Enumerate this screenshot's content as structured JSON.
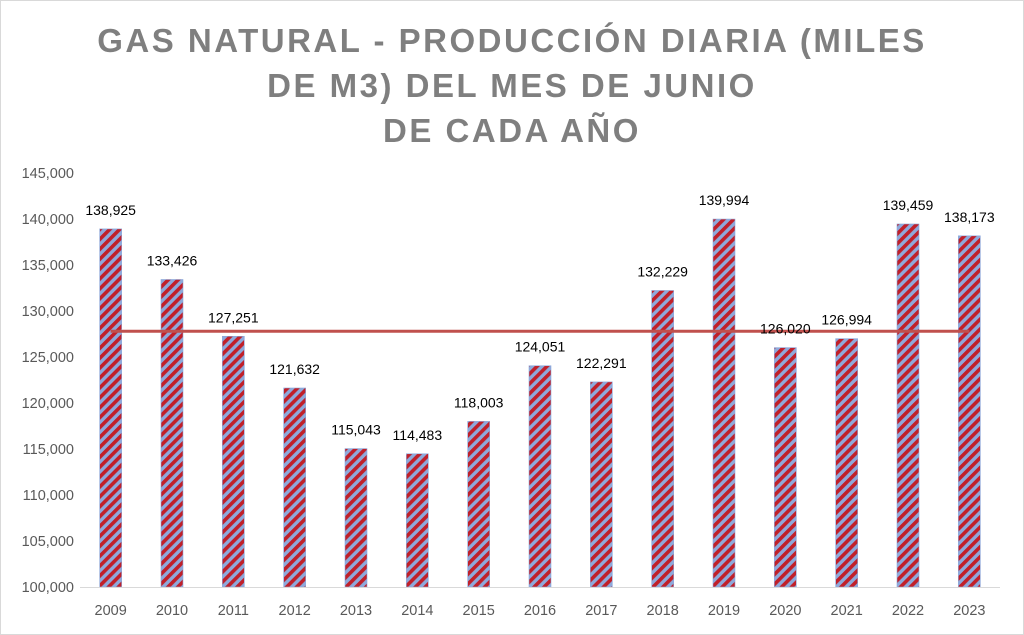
{
  "chart_data": {
    "type": "bar",
    "title_lines": [
      "GAS NATURAL - PRODUCCIÓN DIARIA (MILES",
      "DE M3) DEL MES DE JUNIO",
      "DE CADA AÑO"
    ],
    "categories": [
      "2009",
      "2010",
      "2011",
      "2012",
      "2013",
      "2014",
      "2015",
      "2016",
      "2017",
      "2018",
      "2019",
      "2020",
      "2021",
      "2022",
      "2023"
    ],
    "values": [
      138925,
      133426,
      127251,
      121632,
      115043,
      114483,
      118003,
      124051,
      122291,
      132229,
      139994,
      126020,
      126994,
      139459,
      138173
    ],
    "value_labels": [
      "138,925",
      "133,426",
      "127,251",
      "121,632",
      "115,043",
      "114,483",
      "118,003",
      "124,051",
      "122,291",
      "132,229",
      "139,994",
      "126,020",
      "126,994",
      "139,459",
      "138,173"
    ],
    "yticks": [
      "100,000",
      "105,000",
      "110,000",
      "115,000",
      "120,000",
      "125,000",
      "130,000",
      "135,000",
      "140,000",
      "145,000"
    ],
    "ylim": [
      100000,
      145000
    ],
    "ystep": 5000,
    "average_line": 127800,
    "grid": false,
    "legend": "none",
    "colors": {
      "bar_stripe": "#c0202a",
      "bar_base": "#8ea9db",
      "average_line": "#c0504d",
      "title": "#7f7f7f",
      "ticks": "#595959"
    }
  }
}
